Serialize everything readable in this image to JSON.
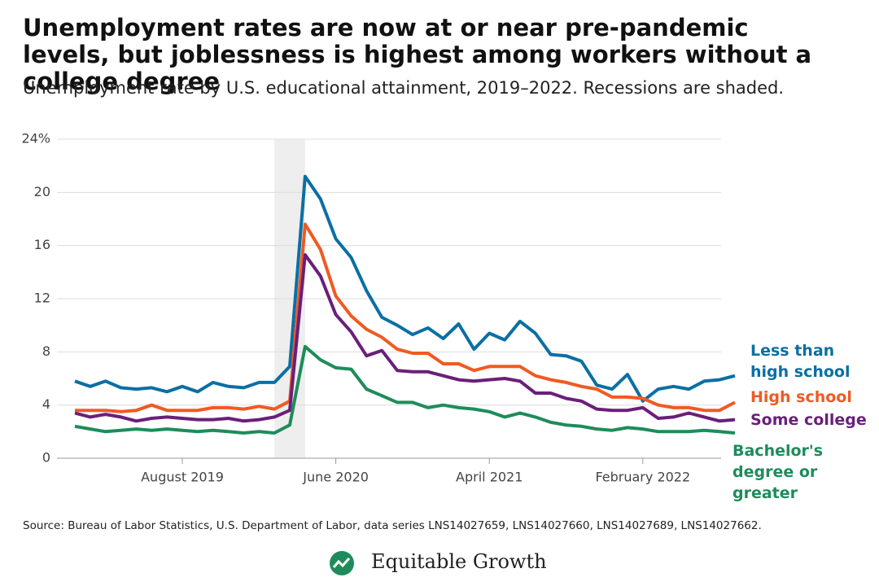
{
  "chart_data": {
    "type": "line",
    "title": "Unemployment rates are now at or near pre-pandemic levels, but joblessness is highest among workers without a college degree",
    "subtitle": "Unemployment rate by U.S. educational attainment, 2019–2022. Recessions are shaded.",
    "source": "Source: Bureau of Labor Statistics, U.S. Department of Labor, data series LNS14027659, LNS14027660, LNS14027689, LNS14027662.",
    "brand": "Equitable Growth",
    "categories": [
      null,
      null,
      null,
      null,
      null,
      null,
      null,
      "August 2019",
      null,
      null,
      null,
      null,
      null,
      null,
      null,
      null,
      null,
      "June 2020",
      null,
      null,
      null,
      null,
      null,
      null,
      null,
      null,
      null,
      "April 2021",
      null,
      null,
      null,
      null,
      null,
      null,
      null,
      null,
      null,
      "February 2022",
      null,
      null,
      null,
      null,
      null,
      null
    ],
    "shaded": {
      "from": 13,
      "to": 15
    },
    "ylim": [
      0,
      24
    ],
    "yticks": [
      0,
      4,
      8,
      12,
      16,
      20,
      {
        "value": 24,
        "label": "24%"
      }
    ],
    "grid": true,
    "series": [
      {
        "name": "Less than high school",
        "color": "#0b6fa4",
        "values": [
          5.8,
          5.4,
          5.8,
          5.3,
          5.2,
          5.3,
          5.0,
          5.4,
          5.0,
          5.7,
          5.4,
          5.3,
          5.7,
          5.7,
          6.9,
          21.2,
          19.5,
          16.5,
          15.1,
          12.6,
          10.6,
          10.0,
          9.3,
          9.8,
          9.0,
          10.1,
          8.2,
          9.4,
          8.9,
          10.3,
          9.4,
          7.8,
          7.7,
          7.3,
          5.5,
          5.2,
          6.3,
          4.3,
          5.2,
          5.4,
          5.2,
          5.8,
          5.9,
          6.2
        ]
      },
      {
        "name": "High school",
        "color": "#f05a22",
        "values": [
          3.6,
          3.6,
          3.6,
          3.5,
          3.6,
          4.0,
          3.6,
          3.6,
          3.6,
          3.8,
          3.8,
          3.7,
          3.9,
          3.7,
          4.3,
          17.6,
          15.7,
          12.2,
          10.7,
          9.7,
          9.1,
          8.2,
          7.9,
          7.9,
          7.1,
          7.1,
          6.6,
          6.9,
          6.9,
          6.9,
          6.2,
          5.9,
          5.7,
          5.4,
          5.2,
          4.6,
          4.6,
          4.5,
          4.0,
          3.8,
          3.8,
          3.6,
          3.6,
          4.2
        ]
      },
      {
        "name": "Some college",
        "color": "#6a1f7a",
        "values": [
          3.4,
          3.1,
          3.3,
          3.1,
          2.8,
          3.0,
          3.1,
          3.0,
          2.9,
          2.9,
          3.0,
          2.8,
          2.9,
          3.1,
          3.6,
          15.3,
          13.7,
          10.8,
          9.5,
          7.7,
          8.1,
          6.6,
          6.5,
          6.5,
          6.2,
          5.9,
          5.8,
          5.9,
          6.0,
          5.8,
          4.9,
          4.9,
          4.5,
          4.3,
          3.7,
          3.6,
          3.6,
          3.8,
          3.0,
          3.1,
          3.4,
          3.1,
          2.8,
          2.9
        ]
      },
      {
        "name": "Bachelor's degree or greater",
        "color": "#1e8c5a",
        "values": [
          2.4,
          2.2,
          2.0,
          2.1,
          2.2,
          2.1,
          2.2,
          2.1,
          2.0,
          2.1,
          2.0,
          1.9,
          2.0,
          1.9,
          2.5,
          8.4,
          7.4,
          6.8,
          6.7,
          5.2,
          4.7,
          4.2,
          4.2,
          3.8,
          4.0,
          3.8,
          3.7,
          3.5,
          3.1,
          3.4,
          3.1,
          2.7,
          2.5,
          2.4,
          2.2,
          2.1,
          2.3,
          2.2,
          2.0,
          2.0,
          2.0,
          2.1,
          2.0,
          1.9
        ]
      }
    ]
  }
}
